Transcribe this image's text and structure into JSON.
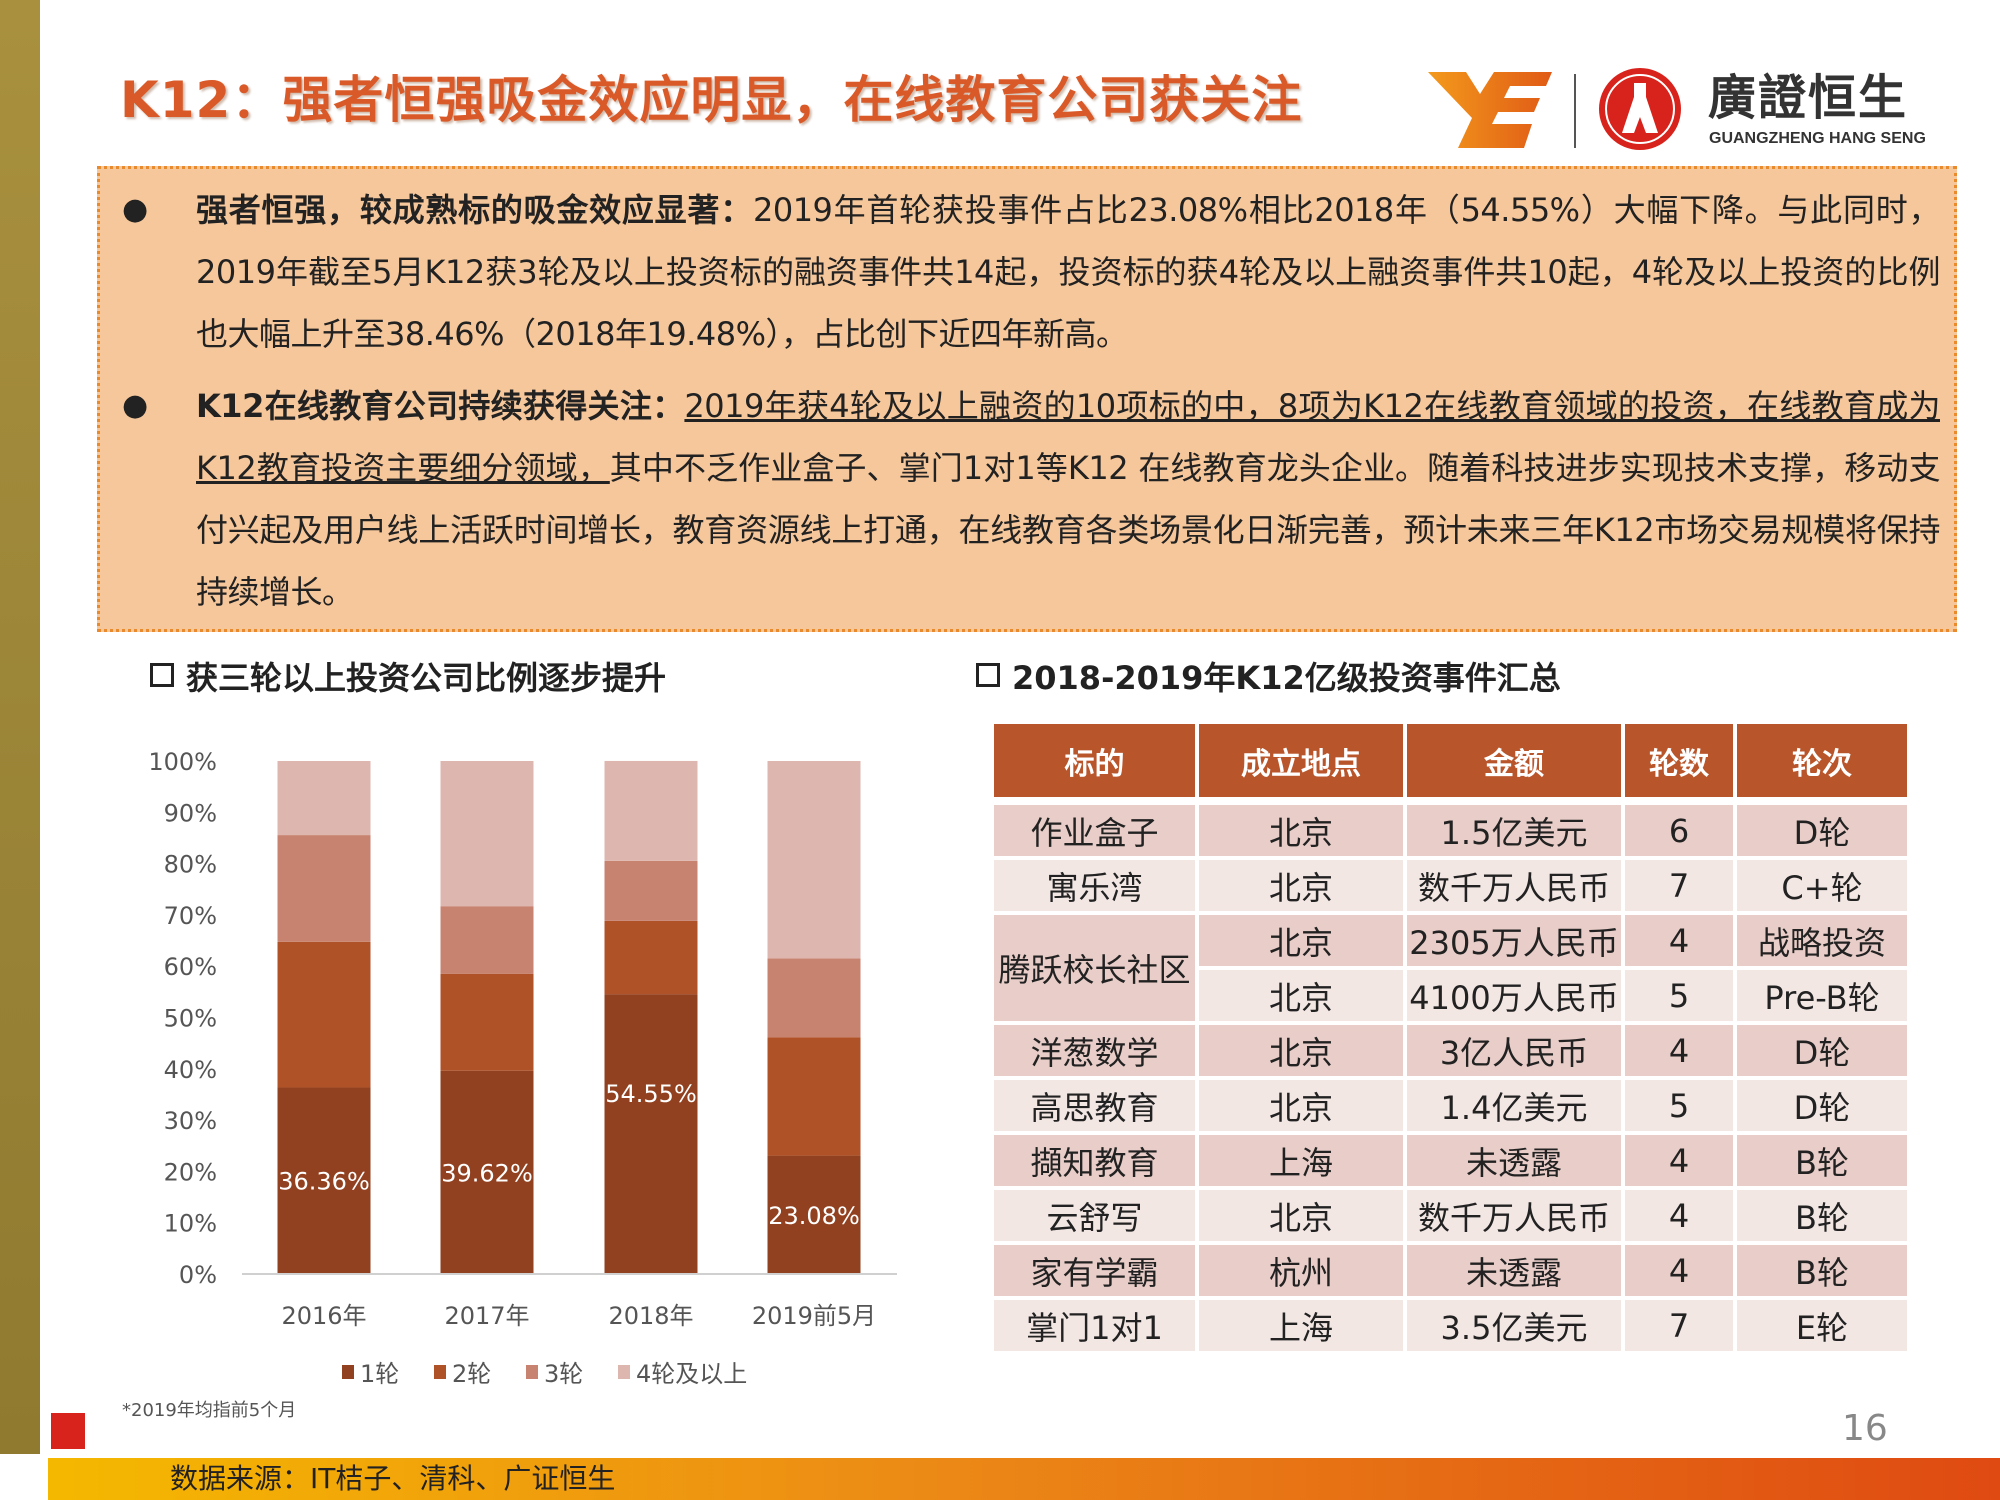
{
  "header": {
    "title": "K12：强者恒强吸金效应明显，在线教育公司获关注",
    "logo_cn": "廣證恒生",
    "logo_en": "GUANGZHENG HANG SENG"
  },
  "bullets": [
    {
      "bold": "强者恒强，较成熟标的吸金效应显著：",
      "underline": "",
      "text": "2019年首轮获投事件占比23.08%相比2018年（54.55%）大幅下降。与此同时，2019年截至5月K12获3轮及以上投资标的融资事件共14起，投资标的获4轮及以上融资事件共10起，4轮及以上投资的比例也大幅上升至38.46%（2018年19.48%），占比创下近四年新高。"
    },
    {
      "bold": "K12在线教育公司持续获得关注：",
      "underline": "2019年获4轮及以上融资的10项标的中，8项为K12在线教育领域的投资，在线教育成为K12教育投资主要细分领域，",
      "text": "其中不乏作业盒子、掌门1对1等K12 在线教育龙头企业。随着科技进步实现技术支撑，移动支付兴起及用户线上活跃时间增长，教育资源线上打通，在线教育各类场景化日渐完善，预计未来三年K12市场交易规模将保持持续增长。"
    }
  ],
  "chart_section_title": "获三轮以上投资公司比例逐步提升",
  "table_section_title": "2018-2019年K12亿级投资事件汇总",
  "chart_data": {
    "type": "bar",
    "stacked": true,
    "categories": [
      "2016年",
      "2017年",
      "2018年",
      "2019前5月"
    ],
    "series": [
      {
        "name": "1轮",
        "color": "#924120",
        "values": [
          36.36,
          39.62,
          54.55,
          23.08
        ]
      },
      {
        "name": "2轮",
        "color": "#b05228",
        "values": [
          28.4,
          18.87,
          14.29,
          23.08
        ]
      },
      {
        "name": "3轮",
        "color": "#c88370",
        "values": [
          20.8,
          13.21,
          11.69,
          15.38
        ]
      },
      {
        "name": "4轮及以上",
        "color": "#ddb7af",
        "values": [
          14.44,
          28.3,
          19.48,
          38.46
        ]
      }
    ],
    "data_labels": [
      "36.36%",
      "39.62%",
      "54.55%",
      "23.08%"
    ],
    "yticks": [
      "0%",
      "10%",
      "20%",
      "30%",
      "40%",
      "50%",
      "60%",
      "70%",
      "80%",
      "90%",
      "100%"
    ],
    "ylim": [
      0,
      100
    ],
    "legend_position": "bottom",
    "grid": false
  },
  "chart_footnote": "*2019年均指前5个月",
  "table": {
    "headers": [
      "标的",
      "成立地点",
      "金额",
      "轮数",
      "轮次"
    ],
    "rows": [
      [
        "作业盒子",
        "北京",
        "1.5亿美元",
        "6",
        "D轮"
      ],
      [
        "寓乐湾",
        "北京",
        "数千万人民币",
        "7",
        "C+轮"
      ],
      [
        "腾跃校长社区",
        "北京",
        "2305万人民币",
        "4",
        "战略投资"
      ],
      [
        "",
        "北京",
        "4100万人民币",
        "5",
        "Pre-B轮"
      ],
      [
        "洋葱数学",
        "北京",
        "3亿人民币",
        "4",
        "D轮"
      ],
      [
        "高思教育",
        "北京",
        "1.4亿美元",
        "5",
        "D轮"
      ],
      [
        "擷知教育",
        "上海",
        "未透露",
        "4",
        "B轮"
      ],
      [
        "云舒写",
        "北京",
        "数千万人民币",
        "4",
        "B轮"
      ],
      [
        "家有学霸",
        "杭州",
        "未透露",
        "4",
        "B轮"
      ],
      [
        "掌门1对1",
        "上海",
        "3.5亿美元",
        "7",
        "E轮"
      ]
    ]
  },
  "page_number": "16",
  "source": "数据来源：IT桔子、清科、广证恒生",
  "colors": {
    "accent": "#d95a28",
    "table_header": "#b9552b",
    "box_bg": "#f6c79b"
  }
}
